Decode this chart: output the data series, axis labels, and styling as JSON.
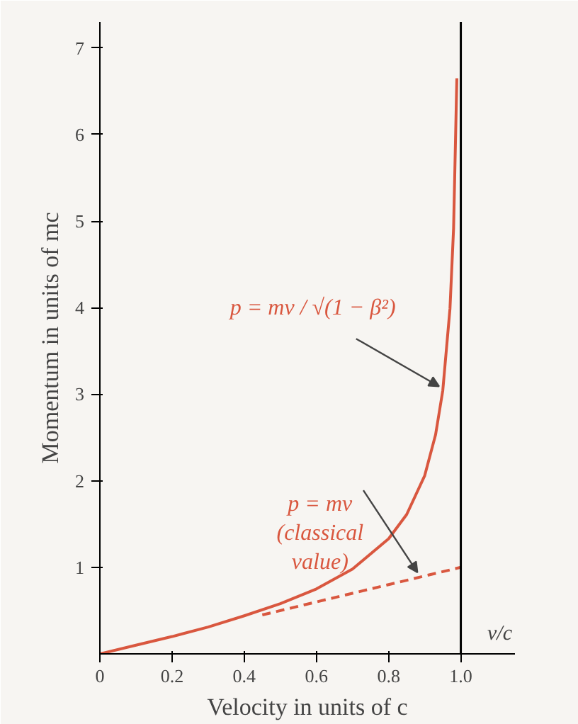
{
  "chart_data": {
    "type": "line",
    "xlabel": "Velocity in units of c",
    "ylabel": "Momentum in units of mc",
    "annotations": [
      "v/c"
    ],
    "xlim": [
      0,
      1.15
    ],
    "ylim": [
      0,
      7.3
    ],
    "xticks": [
      0,
      0.2,
      0.4,
      0.6,
      0.8,
      {
        "value": 1,
        "label": "1.0"
      }
    ],
    "yticks": [
      1,
      2,
      3,
      4,
      5,
      6,
      7
    ],
    "grid": false,
    "marker": "none",
    "series": [
      {
        "name": "p = mv / √(1 − β²)",
        "color": "#d9573f",
        "line_style": "solid",
        "x": [
          0,
          0.1,
          0.2,
          0.3,
          0.4,
          0.5,
          0.6,
          0.7,
          0.8,
          0.85,
          0.9,
          0.93,
          0.95,
          0.97,
          0.98,
          0.989
        ],
        "values": [
          0,
          0.1,
          0.2,
          0.31,
          0.44,
          0.58,
          0.75,
          0.98,
          1.33,
          1.61,
          2.06,
          2.53,
          3.04,
          3.99,
          4.92,
          6.65
        ]
      },
      {
        "name": "p = mv\n(classical\nvalue)",
        "color": "#d9573f",
        "line_style": "dashed",
        "x": [
          0.45,
          1.0
        ],
        "values": [
          0.45,
          1.0
        ]
      }
    ],
    "ref_lines": [
      {
        "axis": "x",
        "value": 1,
        "color": "#000000",
        "line_style": "solid"
      }
    ]
  }
}
